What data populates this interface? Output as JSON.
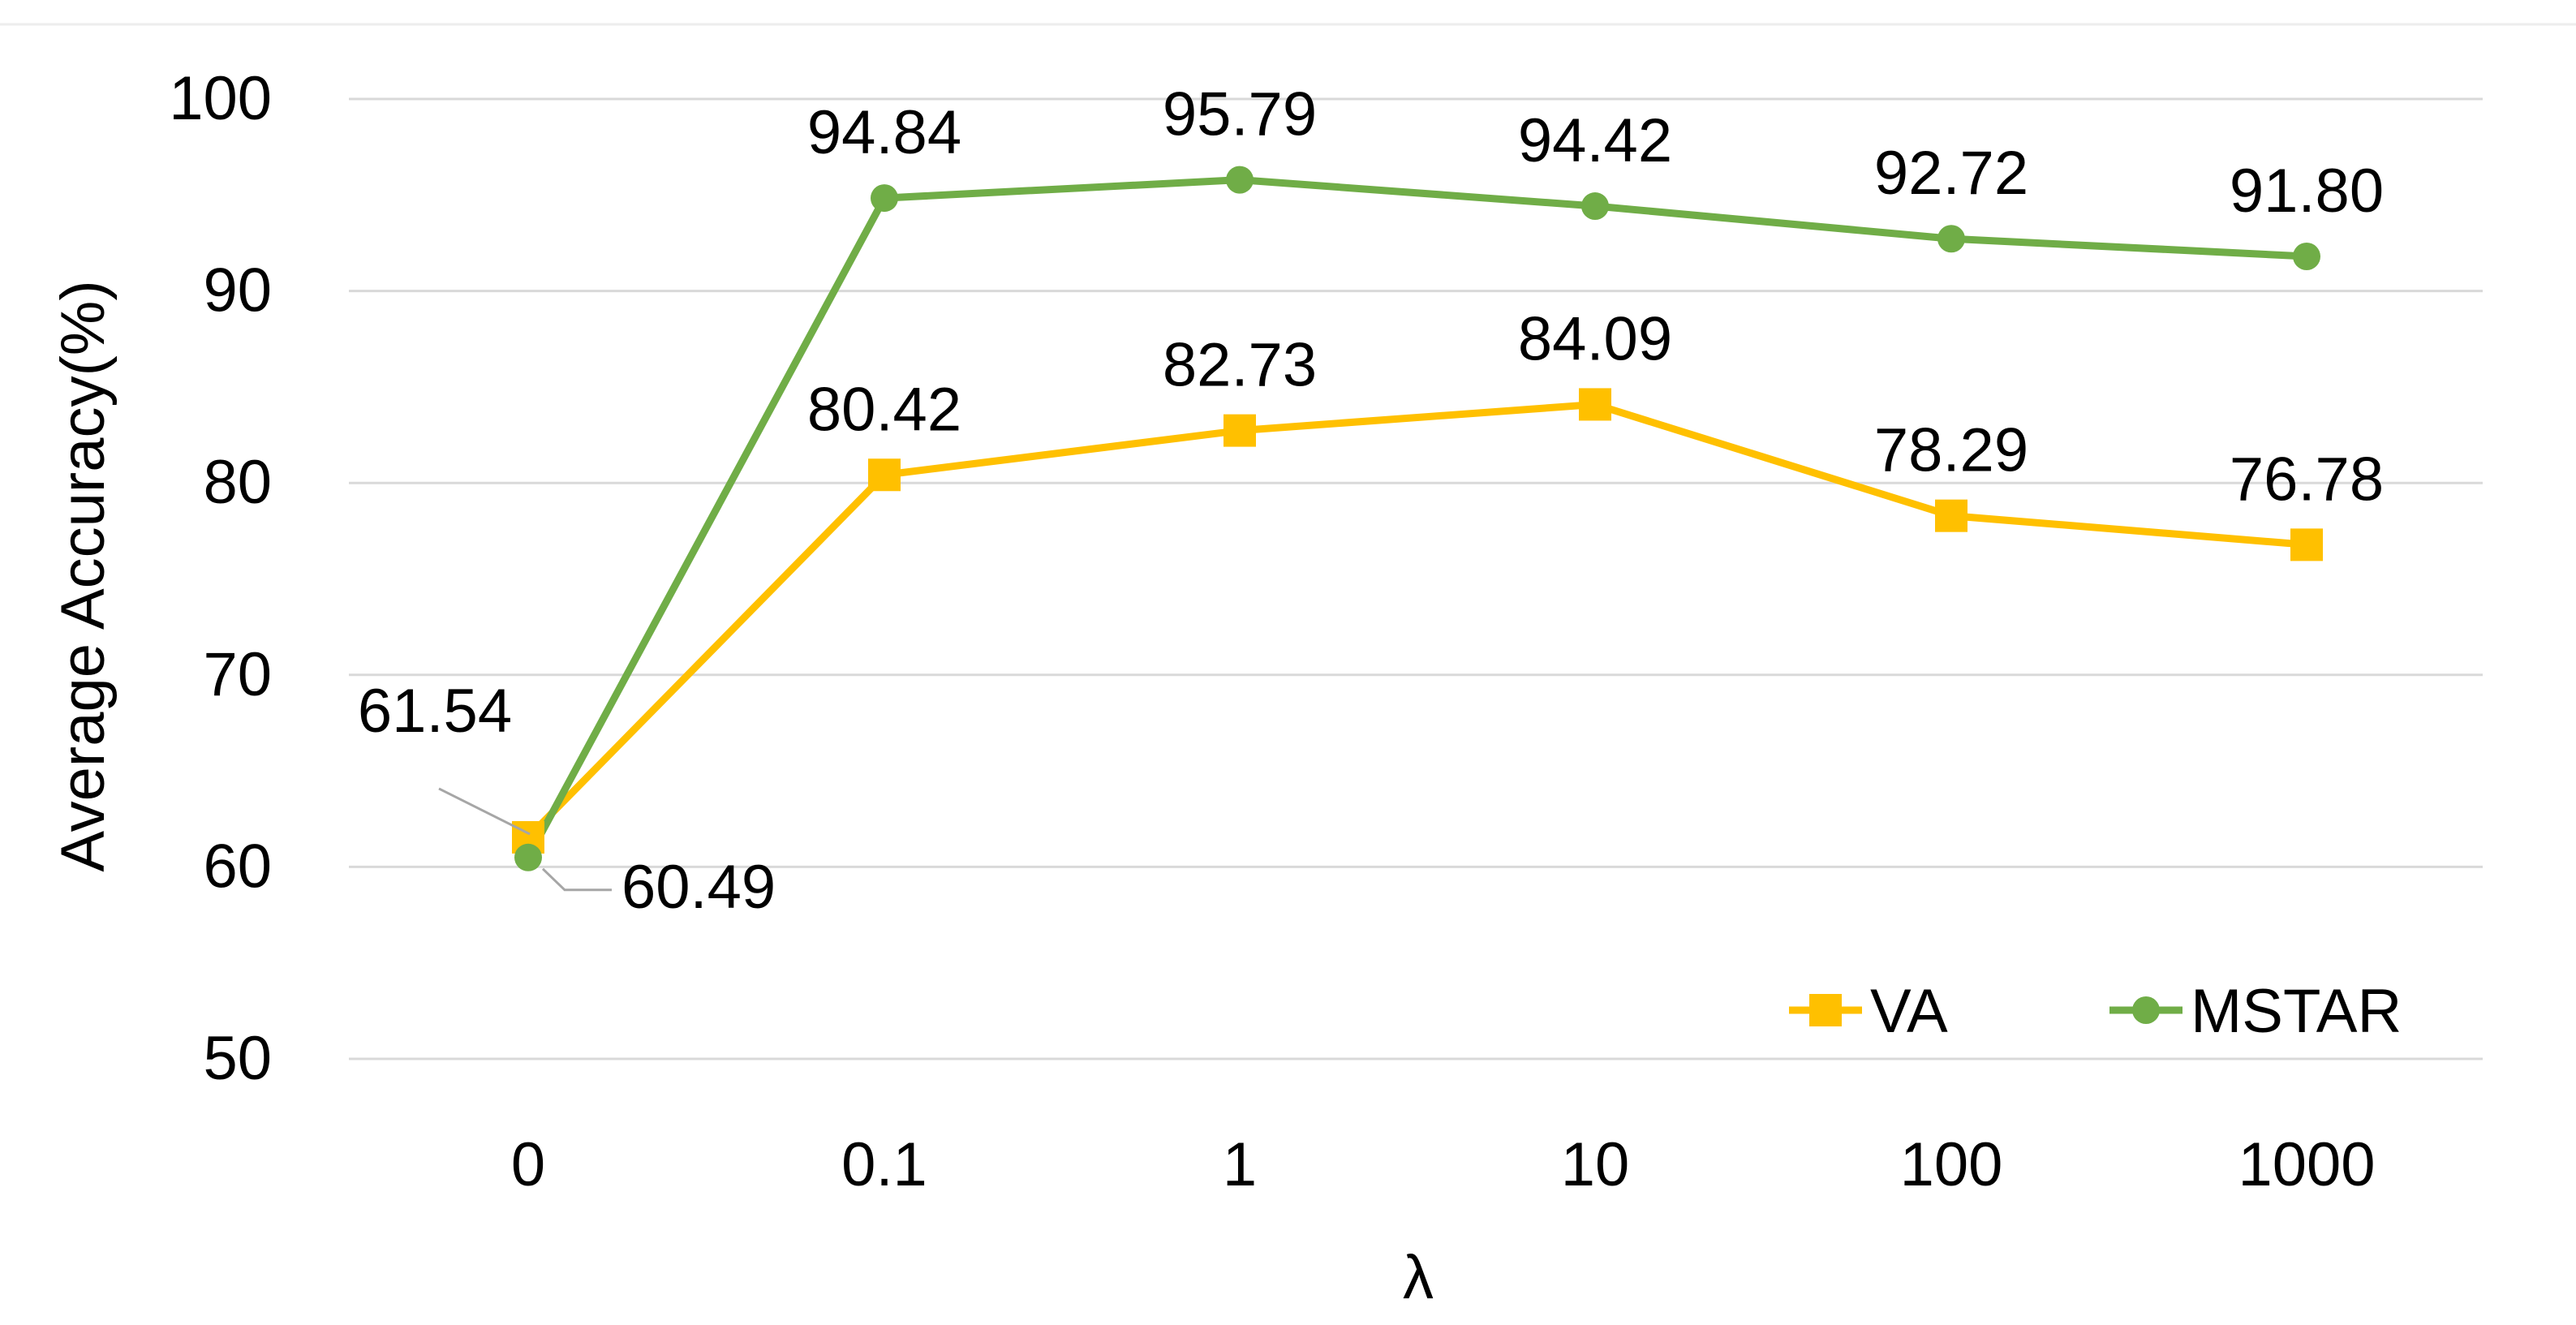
{
  "chart_data": {
    "type": "line",
    "title": "",
    "xlabel": "λ",
    "ylabel": "Average Accuracy(%)",
    "categories": [
      "0",
      "0.1",
      "1",
      "10",
      "100",
      "1000"
    ],
    "ylim": [
      50,
      100
    ],
    "yticks": [
      "50",
      "60",
      "70",
      "80",
      "90",
      "100"
    ],
    "grid": true,
    "legend_position": "bottom-right",
    "series": [
      {
        "name": "VA",
        "color": "#FFC000",
        "marker": "square",
        "values": [
          61.54,
          80.42,
          82.73,
          84.09,
          78.29,
          76.78
        ],
        "labels": [
          "61.54",
          "80.42",
          "82.73",
          "84.09",
          "78.29",
          "76.78"
        ]
      },
      {
        "name": "MSTAR",
        "color": "#70AD47",
        "marker": "circle",
        "values": [
          60.49,
          94.84,
          95.79,
          94.42,
          92.72,
          91.8
        ],
        "labels": [
          "60.49",
          "94.84",
          "95.79",
          "94.42",
          "92.72",
          "91.80"
        ]
      }
    ]
  }
}
